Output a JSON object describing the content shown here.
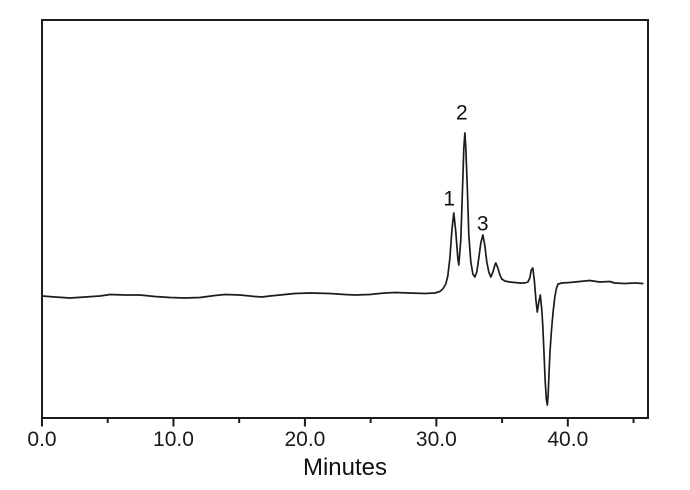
{
  "figure": {
    "background": "#ffffff",
    "line_color": "#1c1c1c",
    "frame_color": "#1c1c1c",
    "text_color": "#1a1a1a"
  },
  "chart_data": {
    "type": "line",
    "title": "",
    "xlabel": "Minutes",
    "ylabel": "",
    "xlim": [
      0,
      46.1
    ],
    "ylim": [
      -122,
      276
    ],
    "grid": false,
    "legend": false,
    "y_axis_ticks": "none (unlabeled intensity axis)",
    "x_major_ticks": [
      {
        "value": 0,
        "label": "0.0"
      },
      {
        "value": 10,
        "label": "10.0"
      },
      {
        "value": 20,
        "label": "20.0"
      },
      {
        "value": 30,
        "label": "30.0"
      },
      {
        "value": 40,
        "label": "40.0"
      }
    ],
    "x_minor_ticks": [
      5,
      15,
      25,
      35,
      45
    ],
    "peaks": [
      {
        "label": "1",
        "retention_minutes": 31.3,
        "relative_height": 83
      },
      {
        "label": "2",
        "retention_minutes": 32.2,
        "relative_height": 163
      },
      {
        "label": "3",
        "retention_minutes": 33.5,
        "relative_height": 61
      }
    ],
    "unlabeled_features": [
      {
        "description": "small peak",
        "retention_minutes": 34.5,
        "relative_height": 33
      },
      {
        "description": "small sharp peak",
        "retention_minutes": 37.3,
        "relative_height": 28
      },
      {
        "description": "deep negative dip",
        "retention_minutes": 38.4,
        "relative_height": -109
      }
    ],
    "annotations": [
      {
        "text": "1",
        "x": 30.98,
        "y": 97
      },
      {
        "text": "2",
        "x": 31.94,
        "y": 183
      },
      {
        "text": "3",
        "x": 33.53,
        "y": 72
      }
    ],
    "series": [
      {
        "name": "chromatogram signal",
        "points": [
          [
            0.0,
            0
          ],
          [
            0.99,
            -1
          ],
          [
            2.13,
            -2
          ],
          [
            3.27,
            -1
          ],
          [
            4.41,
            0
          ],
          [
            5.17,
            1.5
          ],
          [
            6.31,
            1
          ],
          [
            7.45,
            1
          ],
          [
            8.59,
            -0.5
          ],
          [
            9.73,
            -1.5
          ],
          [
            10.87,
            -2
          ],
          [
            12.02,
            -1.5
          ],
          [
            13.16,
            0.5
          ],
          [
            13.92,
            1.5
          ],
          [
            15.06,
            1
          ],
          [
            16.2,
            -0.5
          ],
          [
            16.73,
            -1
          ],
          [
            17.34,
            0
          ],
          [
            18.48,
            1.5
          ],
          [
            19.24,
            2.5
          ],
          [
            20.38,
            3
          ],
          [
            21.9,
            2.5
          ],
          [
            23.04,
            1.5
          ],
          [
            23.8,
            1
          ],
          [
            24.94,
            1.5
          ],
          [
            26.08,
            3
          ],
          [
            26.84,
            3.5
          ],
          [
            27.98,
            3
          ],
          [
            29.13,
            2.5
          ],
          [
            29.89,
            3
          ],
          [
            30.27,
            4.5
          ],
          [
            30.49,
            7
          ],
          [
            30.72,
            12
          ],
          [
            30.87,
            20
          ],
          [
            31.03,
            38
          ],
          [
            31.18,
            66
          ],
          [
            31.33,
            83
          ],
          [
            31.48,
            64
          ],
          [
            31.63,
            38
          ],
          [
            31.71,
            31
          ],
          [
            31.86,
            56
          ],
          [
            32.01,
            116
          ],
          [
            32.09,
            148
          ],
          [
            32.17,
            163
          ],
          [
            32.24,
            148
          ],
          [
            32.36,
            106
          ],
          [
            32.47,
            61
          ],
          [
            32.62,
            34
          ],
          [
            32.78,
            22
          ],
          [
            32.93,
            19
          ],
          [
            33.08,
            24
          ],
          [
            33.23,
            38
          ],
          [
            33.38,
            53
          ],
          [
            33.54,
            61
          ],
          [
            33.69,
            50
          ],
          [
            33.84,
            34
          ],
          [
            33.99,
            24
          ],
          [
            34.14,
            19
          ],
          [
            34.3,
            24
          ],
          [
            34.45,
            31
          ],
          [
            34.52,
            33
          ],
          [
            34.68,
            28
          ],
          [
            34.83,
            21
          ],
          [
            34.98,
            17
          ],
          [
            35.21,
            15
          ],
          [
            35.59,
            14
          ],
          [
            35.97,
            13.5
          ],
          [
            36.35,
            13
          ],
          [
            36.73,
            13
          ],
          [
            36.96,
            14
          ],
          [
            37.11,
            18
          ],
          [
            37.22,
            26
          ],
          [
            37.34,
            28
          ],
          [
            37.45,
            16
          ],
          [
            37.57,
            -4
          ],
          [
            37.68,
            -16
          ],
          [
            37.79,
            -6
          ],
          [
            37.91,
            1
          ],
          [
            38.02,
            -14
          ],
          [
            38.1,
            -30
          ],
          [
            38.18,
            -55
          ],
          [
            38.28,
            -85
          ],
          [
            38.36,
            -103
          ],
          [
            38.44,
            -109
          ],
          [
            38.5,
            -100
          ],
          [
            38.58,
            -75
          ],
          [
            38.65,
            -54
          ],
          [
            38.76,
            -34
          ],
          [
            38.88,
            -16
          ],
          [
            39.01,
            -1
          ],
          [
            39.14,
            8
          ],
          [
            39.26,
            12
          ],
          [
            39.54,
            13
          ],
          [
            40.15,
            13.5
          ],
          [
            40.91,
            14.5
          ],
          [
            41.67,
            15.5
          ],
          [
            42.43,
            14
          ],
          [
            43.19,
            14.5
          ],
          [
            43.57,
            13
          ],
          [
            44.33,
            12.5
          ],
          [
            45.1,
            13
          ],
          [
            45.7,
            12.5
          ]
        ]
      }
    ]
  }
}
